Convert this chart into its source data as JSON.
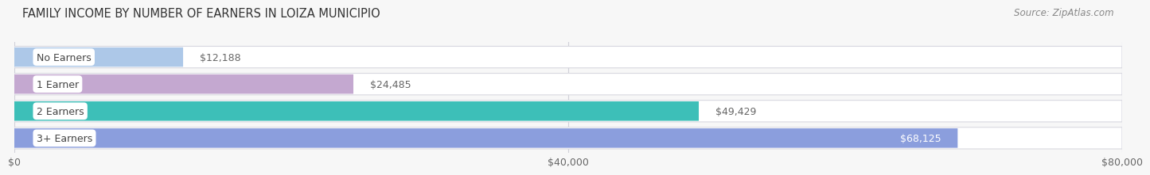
{
  "title": "FAMILY INCOME BY NUMBER OF EARNERS IN LOIZA MUNICIPIO",
  "source": "Source: ZipAtlas.com",
  "categories": [
    "No Earners",
    "1 Earner",
    "2 Earners",
    "3+ Earners"
  ],
  "values": [
    12188,
    24485,
    49429,
    68125
  ],
  "labels": [
    "$12,188",
    "$24,485",
    "$49,429",
    "$68,125"
  ],
  "bar_colors": [
    "#adc8e8",
    "#c4a8d0",
    "#3dbfb8",
    "#8b9edd"
  ],
  "bar_bg_color": "#e9e9ef",
  "xlim_max": 80000,
  "xticks": [
    0,
    40000,
    80000
  ],
  "xticklabels": [
    "$0",
    "$40,000",
    "$80,000"
  ],
  "title_fontsize": 10.5,
  "source_fontsize": 8.5,
  "bar_height": 0.72,
  "background_color": "#f7f7f7",
  "label_inside_threshold": 55000,
  "label_inside_color": "#ffffff",
  "label_outside_color": "#666666",
  "cat_label_color": "#444444",
  "grid_color": "#d0d0d8",
  "row_bg_color": "#ffffff"
}
